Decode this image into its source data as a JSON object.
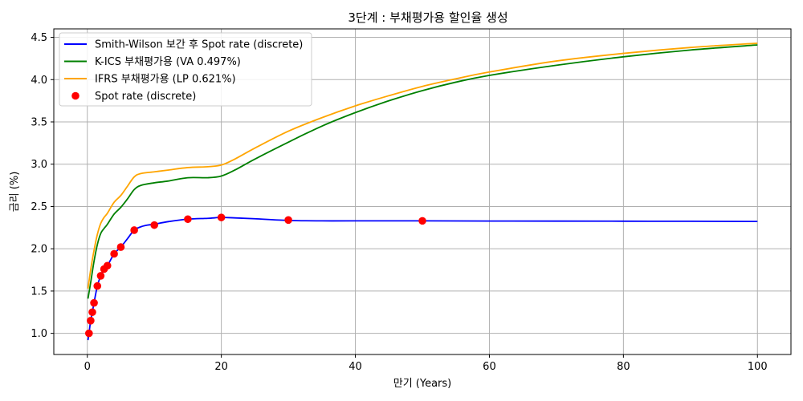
{
  "chart_data": {
    "type": "line",
    "title": "3단계 : 부채평가용 할인율 생성",
    "xlabel": "만기 (Years)",
    "ylabel": "금리 (%)",
    "xlim": [
      -5,
      105
    ],
    "ylim": [
      0.75,
      4.6
    ],
    "xticks": [
      0,
      20,
      40,
      60,
      80,
      100
    ],
    "xtick_labels": [
      "0",
      "20",
      "40",
      "60",
      "80",
      "100"
    ],
    "yticks": [
      1.0,
      1.5,
      2.0,
      2.5,
      3.0,
      3.5,
      4.0,
      4.5
    ],
    "ytick_labels": [
      "1.0",
      "1.5",
      "2.0",
      "2.5",
      "3.0",
      "3.5",
      "4.0",
      "4.5"
    ],
    "grid": true,
    "legend_position": "top-left",
    "series": [
      {
        "name": "Smith-Wilson 보간 후 Spot rate (discrete)",
        "kind": "line",
        "color": "#0000ff",
        "x": [
          0.1,
          0.25,
          0.5,
          0.75,
          1,
          1.5,
          2,
          2.5,
          3,
          4,
          5,
          6,
          7,
          8,
          9,
          10,
          12,
          15,
          18,
          20,
          22,
          25,
          30,
          35,
          40,
          50,
          60,
          70,
          80,
          90,
          100
        ],
        "y": [
          0.92,
          1.0,
          1.15,
          1.25,
          1.36,
          1.56,
          1.68,
          1.76,
          1.8,
          1.94,
          2.02,
          2.12,
          2.22,
          2.26,
          2.28,
          2.29,
          2.32,
          2.35,
          2.36,
          2.37,
          2.365,
          2.355,
          2.335,
          2.33,
          2.33,
          2.33,
          2.328,
          2.327,
          2.326,
          2.325,
          2.323
        ]
      },
      {
        "name": "K-ICS 부채평가용 (VA 0.497%)",
        "kind": "line",
        "color": "#008000",
        "x": [
          0.1,
          0.5,
          1,
          1.5,
          2,
          2.5,
          3,
          4,
          5,
          6,
          7,
          8,
          10,
          12,
          15,
          18,
          20,
          22,
          25,
          30,
          35,
          40,
          45,
          50,
          55,
          60,
          70,
          80,
          90,
          100
        ],
        "y": [
          1.41,
          1.6,
          1.85,
          2.05,
          2.18,
          2.24,
          2.29,
          2.41,
          2.49,
          2.59,
          2.7,
          2.75,
          2.78,
          2.8,
          2.84,
          2.84,
          2.86,
          2.93,
          3.06,
          3.26,
          3.45,
          3.61,
          3.75,
          3.87,
          3.97,
          4.05,
          4.17,
          4.27,
          4.35,
          4.41
        ]
      },
      {
        "name": "IFRS 부채평가용 (LP 0.621%)",
        "kind": "line",
        "color": "#ffa500",
        "x": [
          0.1,
          0.5,
          1,
          1.5,
          2,
          2.5,
          3,
          4,
          5,
          6,
          7,
          8,
          10,
          12,
          15,
          18,
          20,
          22,
          25,
          30,
          35,
          40,
          45,
          50,
          55,
          60,
          70,
          80,
          90,
          100
        ],
        "y": [
          1.53,
          1.75,
          1.98,
          2.17,
          2.3,
          2.37,
          2.42,
          2.55,
          2.63,
          2.74,
          2.85,
          2.89,
          2.91,
          2.93,
          2.96,
          2.97,
          2.99,
          3.06,
          3.19,
          3.39,
          3.55,
          3.69,
          3.81,
          3.92,
          4.01,
          4.09,
          4.22,
          4.31,
          4.38,
          4.43
        ]
      },
      {
        "name": "Spot rate (discrete)",
        "kind": "scatter",
        "color": "#ff0000",
        "x": [
          0.25,
          0.5,
          0.75,
          1,
          1.5,
          2,
          2.5,
          3,
          4,
          5,
          7,
          10,
          15,
          20,
          30,
          50
        ],
        "y": [
          1.0,
          1.15,
          1.25,
          1.36,
          1.56,
          1.68,
          1.76,
          1.8,
          1.94,
          2.02,
          2.22,
          2.28,
          2.35,
          2.37,
          2.34,
          2.33
        ]
      }
    ]
  }
}
